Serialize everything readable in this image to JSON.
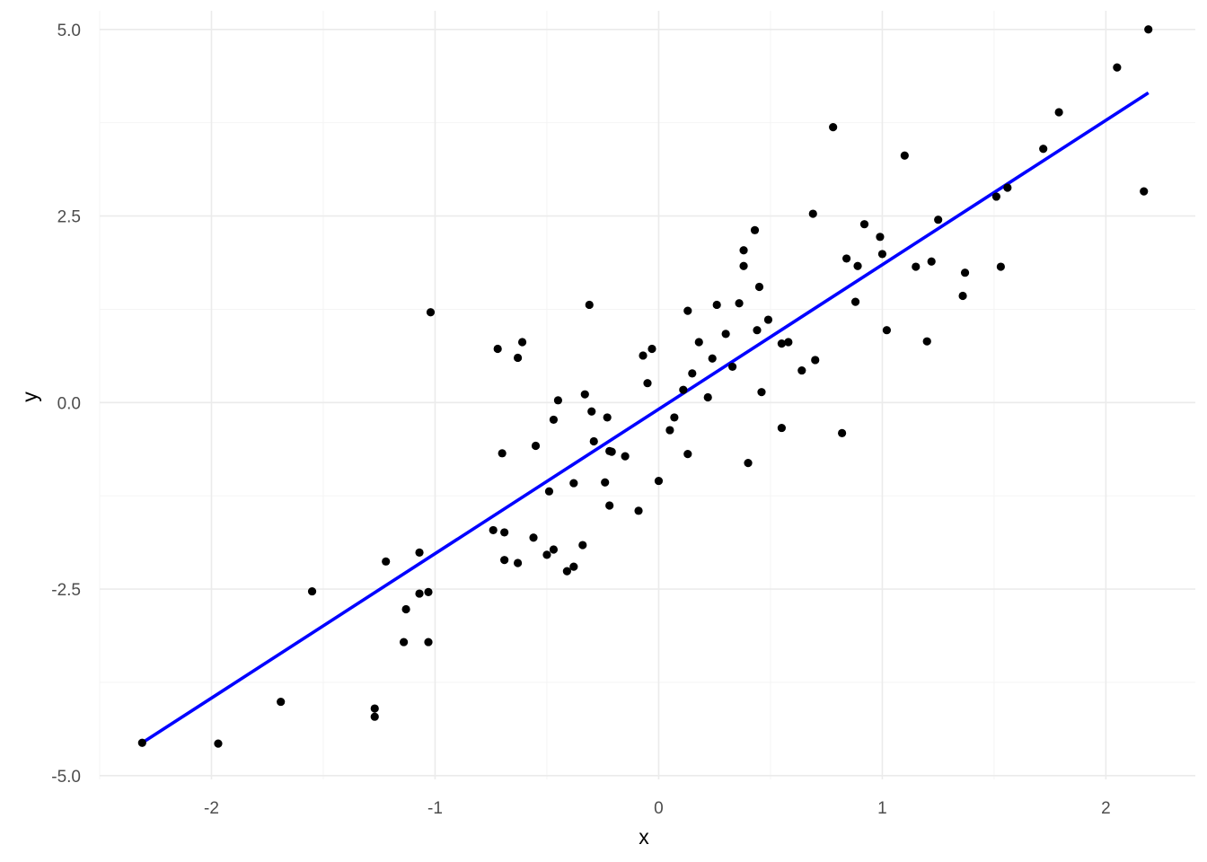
{
  "chart_data": {
    "type": "scatter",
    "title": "",
    "xlabel": "x",
    "ylabel": "y",
    "xlim": [
      -2.5,
      2.4
    ],
    "ylim": [
      -5.05,
      5.25
    ],
    "x_ticks": [
      -2,
      -1,
      0,
      1,
      2
    ],
    "x_tick_labels": [
      "-2",
      "-1",
      "0",
      "1",
      "2"
    ],
    "y_ticks": [
      -5.0,
      -2.5,
      0.0,
      2.5,
      5.0
    ],
    "y_tick_labels": [
      "-5.0",
      "-2.5",
      "0.0",
      "2.5",
      "5.0"
    ],
    "grid": true,
    "legend": "none",
    "point_color": "#000000",
    "fit_line": {
      "type": "linear",
      "color": "#0000ff",
      "x": [
        -2.31,
        2.19
      ],
      "y": [
        -4.56,
        4.15
      ]
    },
    "series": [
      {
        "points": [
          [
            -2.31,
            -4.56
          ],
          [
            -1.97,
            -4.57
          ],
          [
            -1.69,
            -4.01
          ],
          [
            -1.55,
            -2.53
          ],
          [
            -1.27,
            -4.1
          ],
          [
            -1.27,
            -4.21
          ],
          [
            -1.22,
            -2.13
          ],
          [
            -1.14,
            -3.21
          ],
          [
            -1.13,
            -2.77
          ],
          [
            -1.07,
            -2.01
          ],
          [
            -1.07,
            -2.56
          ],
          [
            -1.03,
            -2.54
          ],
          [
            -1.03,
            -3.21
          ],
          [
            -1.02,
            1.21
          ],
          [
            -0.74,
            -1.71
          ],
          [
            -0.72,
            0.72
          ],
          [
            -0.7,
            -0.68
          ],
          [
            -0.69,
            -1.74
          ],
          [
            -0.69,
            -2.11
          ],
          [
            -0.63,
            -2.15
          ],
          [
            -0.63,
            0.6
          ],
          [
            -0.61,
            0.81
          ],
          [
            -0.56,
            -1.81
          ],
          [
            -0.55,
            -0.58
          ],
          [
            -0.5,
            -2.04
          ],
          [
            -0.49,
            -1.19
          ],
          [
            -0.47,
            -1.97
          ],
          [
            -0.47,
            -0.23
          ],
          [
            -0.45,
            0.03
          ],
          [
            -0.41,
            -2.26
          ],
          [
            -0.38,
            -2.2
          ],
          [
            -0.38,
            -1.08
          ],
          [
            -0.34,
            -1.91
          ],
          [
            -0.33,
            0.11
          ],
          [
            -0.31,
            1.31
          ],
          [
            -0.3,
            -0.12
          ],
          [
            -0.29,
            -0.52
          ],
          [
            -0.24,
            -1.07
          ],
          [
            -0.23,
            -0.2
          ],
          [
            -0.22,
            -0.65
          ],
          [
            -0.22,
            -1.38
          ],
          [
            -0.21,
            -0.66
          ],
          [
            -0.15,
            -0.72
          ],
          [
            -0.09,
            -1.45
          ],
          [
            -0.07,
            0.63
          ],
          [
            -0.05,
            0.26
          ],
          [
            -0.03,
            0.72
          ],
          [
            0.0,
            -1.05
          ],
          [
            0.05,
            -0.37
          ],
          [
            0.07,
            -0.2
          ],
          [
            0.11,
            0.17
          ],
          [
            0.13,
            1.23
          ],
          [
            0.13,
            -0.69
          ],
          [
            0.15,
            0.39
          ],
          [
            0.18,
            0.81
          ],
          [
            0.22,
            0.07
          ],
          [
            0.24,
            0.59
          ],
          [
            0.26,
            1.31
          ],
          [
            0.3,
            0.92
          ],
          [
            0.33,
            0.48
          ],
          [
            0.36,
            1.33
          ],
          [
            0.38,
            1.83
          ],
          [
            0.38,
            2.04
          ],
          [
            0.4,
            -0.81
          ],
          [
            0.43,
            2.31
          ],
          [
            0.44,
            0.97
          ],
          [
            0.45,
            1.55
          ],
          [
            0.46,
            0.14
          ],
          [
            0.49,
            1.11
          ],
          [
            0.55,
            0.79
          ],
          [
            0.55,
            -0.34
          ],
          [
            0.58,
            0.81
          ],
          [
            0.64,
            0.43
          ],
          [
            0.69,
            2.53
          ],
          [
            0.7,
            0.57
          ],
          [
            0.78,
            3.69
          ],
          [
            0.82,
            -0.41
          ],
          [
            0.84,
            1.93
          ],
          [
            0.88,
            1.35
          ],
          [
            0.89,
            1.83
          ],
          [
            0.92,
            2.39
          ],
          [
            0.99,
            2.22
          ],
          [
            1.0,
            1.99
          ],
          [
            1.02,
            0.97
          ],
          [
            1.1,
            3.31
          ],
          [
            1.15,
            1.82
          ],
          [
            1.2,
            0.82
          ],
          [
            1.22,
            1.89
          ],
          [
            1.25,
            2.45
          ],
          [
            1.36,
            1.43
          ],
          [
            1.37,
            1.74
          ],
          [
            1.51,
            2.76
          ],
          [
            1.53,
            1.82
          ],
          [
            1.56,
            2.88
          ],
          [
            1.72,
            3.4
          ],
          [
            1.79,
            3.89
          ],
          [
            2.05,
            4.49
          ],
          [
            2.17,
            2.83
          ],
          [
            2.19,
            5.0
          ]
        ]
      }
    ]
  }
}
